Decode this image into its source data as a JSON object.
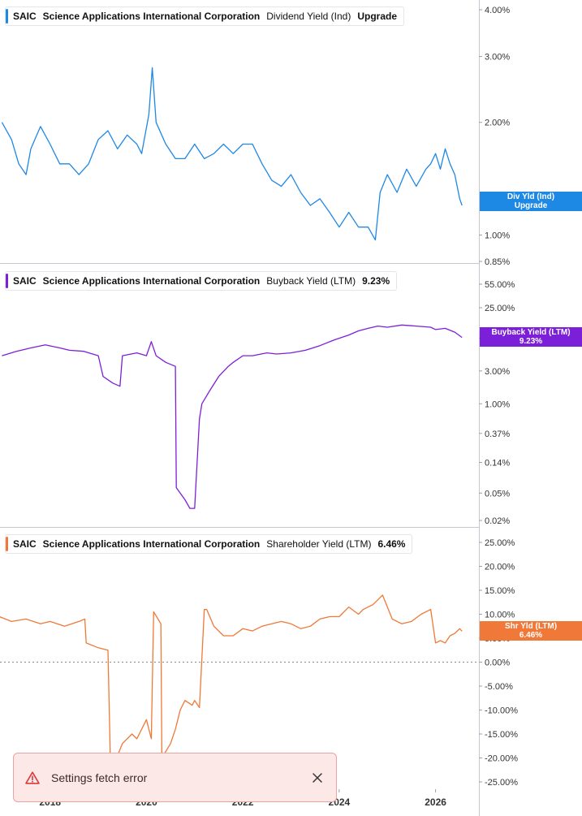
{
  "chart_data": [
    {
      "type": "line",
      "ticker": "SAIC",
      "company": "Science Applications International Corporation",
      "metric": "Dividend Yield (Ind)",
      "value_label": "Upgrade",
      "tag_lines": [
        "Div Yld (Ind)",
        "Upgrade"
      ],
      "color": "#1e88e5",
      "scale": "log",
      "y_ticks": [
        "4.00%",
        "3.00%",
        "2.00%",
        "1.00%",
        "0.85%"
      ],
      "x": [
        2017.0,
        2017.2,
        2017.35,
        2017.5,
        2017.6,
        2017.8,
        2018.0,
        2018.2,
        2018.4,
        2018.6,
        2018.8,
        2019.0,
        2019.2,
        2019.4,
        2019.6,
        2019.8,
        2019.9,
        2020.05,
        2020.12,
        2020.2,
        2020.4,
        2020.6,
        2020.8,
        2021.0,
        2021.2,
        2021.4,
        2021.6,
        2021.8,
        2022.0,
        2022.2,
        2022.4,
        2022.6,
        2022.8,
        2023.0,
        2023.2,
        2023.4,
        2023.6,
        2023.8,
        2024.0,
        2024.2,
        2024.4,
        2024.6,
        2024.75,
        2024.85,
        2025.0,
        2025.2,
        2025.4,
        2025.6,
        2025.8,
        2025.9,
        2026.0,
        2026.1,
        2026.2,
        2026.3,
        2026.4,
        2026.5,
        2026.55
      ],
      "y": [
        2.0,
        1.8,
        1.55,
        1.45,
        1.7,
        1.95,
        1.75,
        1.55,
        1.55,
        1.45,
        1.55,
        1.8,
        1.9,
        1.7,
        1.85,
        1.75,
        1.65,
        2.1,
        2.8,
        2.0,
        1.75,
        1.6,
        1.6,
        1.75,
        1.6,
        1.65,
        1.75,
        1.65,
        1.75,
        1.75,
        1.55,
        1.4,
        1.35,
        1.45,
        1.3,
        1.2,
        1.25,
        1.15,
        1.05,
        1.15,
        1.05,
        1.05,
        0.97,
        1.3,
        1.45,
        1.3,
        1.5,
        1.35,
        1.5,
        1.55,
        1.65,
        1.5,
        1.7,
        1.55,
        1.45,
        1.25,
        1.2
      ]
    },
    {
      "type": "line",
      "ticker": "SAIC",
      "company": "Science Applications International Corporation",
      "metric": "Buyback Yield (LTM)",
      "value_label": "9.23%",
      "tag_lines": [
        "Buyback Yield (LTM)",
        "9.23%"
      ],
      "color": "#7c1fd8",
      "scale": "log",
      "y_ticks": [
        "55.00%",
        "25.00%",
        "9.00%",
        "3.00%",
        "1.00%",
        "0.37%",
        "0.14%",
        "0.05%",
        "0.02%"
      ],
      "x": [
        2017.0,
        2017.3,
        2017.6,
        2017.9,
        2018.2,
        2018.4,
        2018.7,
        2019.0,
        2019.1,
        2019.3,
        2019.45,
        2019.5,
        2019.8,
        2020.0,
        2020.1,
        2020.2,
        2020.4,
        2020.6,
        2020.62,
        2020.8,
        2020.9,
        2021.0,
        2021.1,
        2021.15,
        2021.3,
        2021.5,
        2021.7,
        2021.8,
        2022.0,
        2022.2,
        2022.5,
        2022.7,
        2023.0,
        2023.3,
        2023.6,
        2023.9,
        2024.2,
        2024.4,
        2024.6,
        2024.8,
        2025.0,
        2025.3,
        2025.6,
        2025.9,
        2026.0,
        2026.2,
        2026.4,
        2026.55
      ],
      "y": [
        5.0,
        5.8,
        6.5,
        7.2,
        6.5,
        6.0,
        5.8,
        5.0,
        2.5,
        2.0,
        1.8,
        5.0,
        5.5,
        5.0,
        8.0,
        5.0,
        4.0,
        3.5,
        0.06,
        0.04,
        0.03,
        0.03,
        0.6,
        1.0,
        1.5,
        2.5,
        3.5,
        4.0,
        5.0,
        5.0,
        5.5,
        5.3,
        5.5,
        6.0,
        7.0,
        8.5,
        10.0,
        11.5,
        12.5,
        13.5,
        13.0,
        14.0,
        13.5,
        13.0,
        12.0,
        12.5,
        11.0,
        9.23
      ]
    },
    {
      "type": "line",
      "ticker": "SAIC",
      "company": "Science Applications International Corporation",
      "metric": "Shareholder Yield (LTM)",
      "value_label": "6.46%",
      "tag_lines": [
        "Shr Yld (LTM)",
        "6.46%"
      ],
      "color": "#f07838",
      "scale": "linear",
      "ylim": [
        -26,
        26
      ],
      "y_ticks": [
        "25.00%",
        "20.00%",
        "15.00%",
        "10.00%",
        "5.00%",
        "0.00%",
        "-5.00%",
        "-10.00%",
        "-15.00%",
        "-20.00%",
        "-25.00%"
      ],
      "x": [
        2016.9,
        2016.92,
        2016.95,
        2017.2,
        2017.5,
        2017.8,
        2018.0,
        2018.3,
        2018.6,
        2018.72,
        2018.75,
        2019.0,
        2019.2,
        2019.25,
        2019.3,
        2019.5,
        2019.7,
        2019.8,
        2020.0,
        2020.1,
        2020.15,
        2020.3,
        2020.32,
        2020.5,
        2020.6,
        2020.7,
        2020.8,
        2020.95,
        2021.0,
        2021.1,
        2021.2,
        2021.25,
        2021.4,
        2021.6,
        2021.8,
        2022.0,
        2022.2,
        2022.4,
        2022.6,
        2022.8,
        2023.0,
        2023.2,
        2023.4,
        2023.6,
        2023.8,
        2024.0,
        2024.2,
        2024.4,
        2024.5,
        2024.7,
        2024.9,
        2025.1,
        2025.3,
        2025.5,
        2025.7,
        2025.9,
        2026.0,
        2026.1,
        2026.2,
        2026.3,
        2026.4,
        2026.5,
        2026.55
      ],
      "y": [
        -16.0,
        9.0,
        9.5,
        8.5,
        9.0,
        8.0,
        8.5,
        7.5,
        8.5,
        9.0,
        4.0,
        3.0,
        2.5,
        -20.0,
        -22.0,
        -17.0,
        -15.0,
        -16.0,
        -12.0,
        -16.0,
        10.5,
        8.0,
        -20.0,
        -17.0,
        -14.0,
        -10.0,
        -8.0,
        -9.0,
        -8.0,
        -9.5,
        11.0,
        11.0,
        7.5,
        5.5,
        5.5,
        7.0,
        6.5,
        7.5,
        8.0,
        8.5,
        8.0,
        7.0,
        7.5,
        9.0,
        9.5,
        9.5,
        11.5,
        10.0,
        11.0,
        12.0,
        14.0,
        9.0,
        8.0,
        8.5,
        10.0,
        11.0,
        4.0,
        4.5,
        4.0,
        5.5,
        6.0,
        7.0,
        6.46
      ]
    }
  ],
  "x_axis": {
    "ticks": [
      "2018",
      "2020",
      "2022",
      "2024",
      "2026"
    ]
  },
  "toast": {
    "message": "Settings fetch error",
    "icon": "warning-triangle-icon",
    "close_icon": "close-icon"
  },
  "colors": {
    "grid_line": "#c5c9cf",
    "zero_line": "#888888",
    "toast_bg": "#fde8e8",
    "toast_icon": "#d93a3a"
  }
}
